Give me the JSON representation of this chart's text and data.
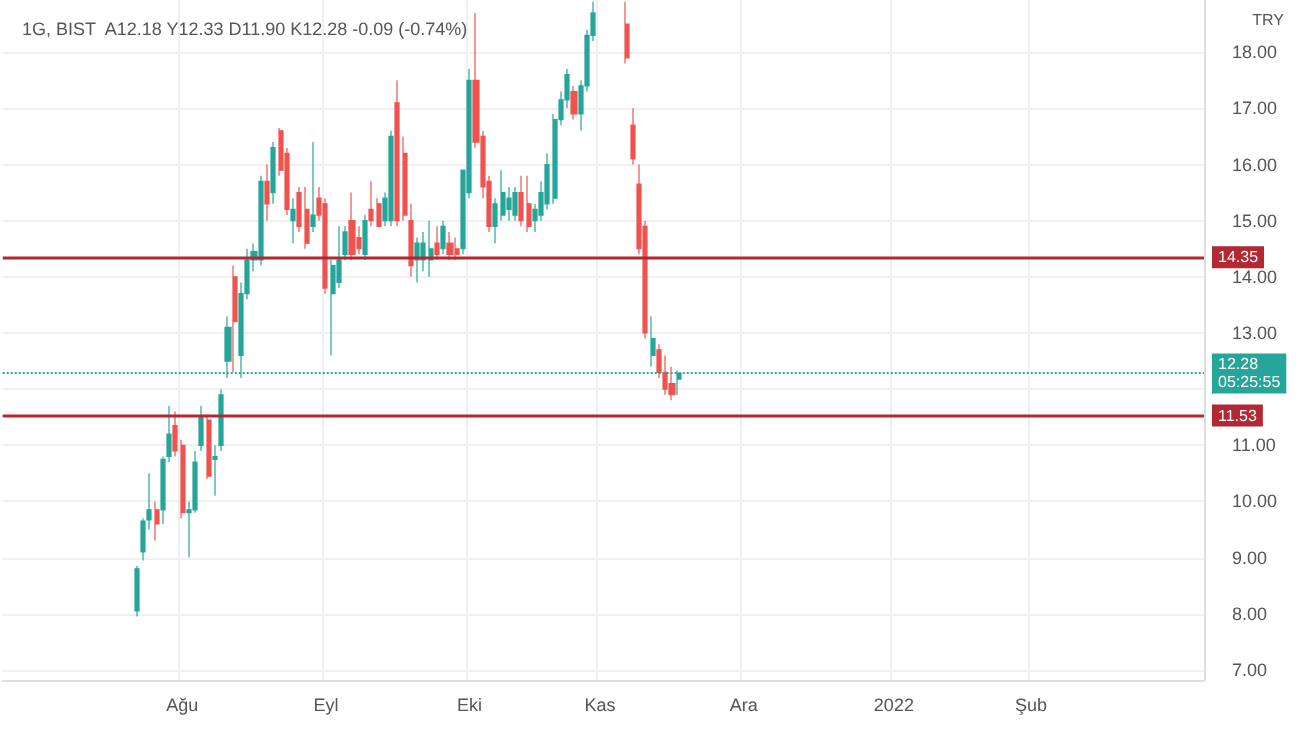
{
  "chart_data": {
    "type": "candlestick",
    "title": "1G, BIST  A12.18 Y12.33 D11.90 K12.28 -0.09 (-0.74%)",
    "categories": [
      null,
      null,
      null,
      null,
      null,
      null,
      null,
      null,
      null,
      null,
      null,
      null,
      null,
      null,
      null,
      null,
      null,
      null,
      null,
      null,
      null,
      null,
      null,
      null,
      null,
      null,
      null,
      "Ağu",
      null,
      null,
      null,
      null,
      null,
      null,
      null,
      null,
      null,
      null,
      null,
      null,
      null,
      null,
      null,
      null,
      null,
      null,
      null,
      null,
      null,
      "Eyl",
      null,
      null,
      null,
      null,
      null,
      null,
      null,
      null,
      null,
      null,
      null,
      null,
      null,
      null,
      null,
      null,
      null,
      null,
      null,
      null,
      null,
      "Eki",
      null,
      null,
      null,
      null,
      null,
      null,
      null,
      null,
      null,
      null,
      null,
      null,
      null,
      null,
      null,
      null,
      null,
      null,
      null,
      "Kas",
      null,
      null,
      null,
      null,
      null,
      null,
      null,
      null,
      null,
      null,
      null,
      null,
      null,
      null,
      null,
      null,
      null,
      null,
      null,
      null,
      null,
      "Ara",
      null,
      null,
      null,
      null,
      null,
      null,
      null,
      null,
      null,
      null,
      null,
      null,
      null,
      null,
      null,
      null,
      null,
      null,
      null,
      null,
      null,
      null,
      "2022",
      null,
      null,
      null,
      null,
      null,
      null,
      null,
      null,
      null,
      null,
      null,
      null,
      null,
      null,
      null,
      null,
      null,
      null,
      null,
      null,
      "Şub",
      null,
      null,
      null,
      null,
      null,
      null,
      null,
      null,
      null,
      null,
      null,
      null,
      null,
      null,
      null,
      null,
      null,
      null,
      null,
      null,
      null,
      null,
      null,
      null,
      null,
      null
    ],
    "ohlc": [
      null,
      null,
      null,
      null,
      null,
      null,
      null,
      null,
      null,
      null,
      null,
      null,
      null,
      null,
      null,
      null,
      null,
      null,
      null,
      null,
      [
        8.05,
        8.85,
        7.95,
        8.8
      ],
      [
        9.1,
        9.7,
        8.95,
        9.65
      ],
      [
        9.67,
        10.5,
        9.5,
        9.85
      ],
      [
        9.85,
        10.0,
        9.3,
        9.6
      ],
      [
        9.85,
        10.8,
        9.6,
        10.75
      ],
      [
        10.8,
        11.7,
        10.7,
        11.2
      ],
      [
        11.35,
        11.6,
        10.8,
        10.9
      ],
      [
        11.0,
        11.1,
        9.7,
        9.8
      ],
      [
        9.8,
        10.0,
        9.0,
        9.85
      ],
      [
        9.85,
        10.9,
        9.8,
        10.7
      ],
      [
        11.0,
        11.7,
        10.9,
        11.5
      ],
      [
        11.45,
        11.55,
        10.4,
        10.45
      ],
      [
        10.75,
        11.0,
        10.1,
        10.8
      ],
      [
        11.0,
        12.0,
        10.9,
        11.9
      ],
      [
        12.5,
        13.3,
        12.2,
        13.1
      ],
      [
        14.0,
        14.2,
        12.3,
        13.2
      ],
      [
        12.6,
        13.9,
        12.2,
        13.7
      ],
      [
        13.7,
        14.5,
        13.6,
        14.3
      ],
      [
        14.3,
        14.6,
        14.1,
        14.45
      ],
      [
        14.3,
        15.8,
        14.2,
        15.7
      ],
      [
        15.7,
        16.0,
        15.0,
        15.3
      ],
      [
        15.5,
        16.4,
        15.3,
        16.3
      ],
      [
        16.6,
        16.65,
        15.8,
        15.9
      ],
      [
        16.2,
        16.3,
        15.1,
        15.2
      ],
      [
        15.0,
        15.4,
        14.6,
        15.2
      ],
      [
        15.5,
        15.6,
        14.8,
        14.9
      ],
      [
        15.2,
        15.6,
        14.5,
        14.6
      ],
      [
        14.9,
        16.4,
        14.8,
        15.1
      ],
      [
        15.4,
        15.6,
        15.0,
        15.1
      ],
      [
        15.3,
        15.4,
        13.7,
        13.8
      ],
      [
        13.7,
        14.3,
        12.6,
        14.2
      ],
      [
        13.9,
        14.9,
        13.8,
        14.3
      ],
      [
        14.4,
        14.9,
        14.3,
        14.8
      ],
      [
        15.0,
        15.5,
        14.3,
        14.4
      ],
      [
        14.7,
        14.9,
        14.4,
        14.5
      ],
      [
        14.4,
        15.1,
        14.3,
        15.0
      ],
      [
        15.2,
        15.7,
        14.9,
        15.0
      ],
      [
        15.3,
        15.4,
        14.9,
        14.9
      ],
      [
        15.0,
        15.5,
        14.9,
        15.4
      ],
      [
        15.0,
        16.6,
        14.9,
        16.5
      ],
      [
        17.1,
        17.5,
        14.9,
        15.0
      ],
      [
        16.2,
        16.5,
        15.0,
        15.1
      ],
      [
        15.0,
        15.3,
        14.0,
        14.2
      ],
      [
        14.3,
        14.7,
        13.9,
        14.6
      ],
      [
        14.3,
        14.8,
        14.1,
        14.6
      ],
      [
        14.3,
        15.0,
        14.0,
        14.5
      ],
      [
        14.6,
        14.9,
        14.3,
        14.4
      ],
      [
        14.5,
        15.0,
        14.4,
        14.9
      ],
      [
        14.6,
        14.8,
        14.3,
        14.4
      ],
      [
        14.5,
        14.7,
        14.3,
        14.4
      ],
      [
        14.5,
        15.9,
        14.4,
        15.9
      ],
      [
        15.5,
        17.7,
        15.4,
        17.5
      ],
      [
        17.5,
        18.7,
        16.3,
        16.4
      ],
      [
        16.5,
        16.6,
        15.4,
        15.6
      ],
      [
        15.7,
        15.8,
        14.8,
        14.9
      ],
      [
        14.9,
        15.4,
        14.6,
        15.3
      ],
      [
        15.1,
        15.9,
        15.0,
        15.5
      ],
      [
        15.2,
        15.6,
        15.0,
        15.4
      ],
      [
        15.1,
        15.6,
        15.0,
        15.5
      ],
      [
        15.5,
        15.8,
        14.9,
        15.0
      ],
      [
        15.3,
        15.8,
        14.8,
        14.9
      ],
      [
        15.0,
        15.3,
        14.8,
        15.2
      ],
      [
        15.1,
        15.7,
        15.0,
        15.5
      ],
      [
        15.3,
        16.2,
        15.2,
        16.0
      ],
      [
        15.4,
        16.9,
        15.3,
        16.8
      ],
      [
        16.8,
        17.3,
        16.7,
        17.15
      ],
      [
        17.15,
        17.7,
        17.0,
        17.6
      ],
      [
        17.3,
        17.4,
        16.8,
        16.9
      ],
      [
        16.9,
        17.5,
        16.6,
        17.4
      ],
      [
        17.4,
        18.4,
        17.3,
        18.3
      ],
      [
        18.3,
        18.9,
        18.2,
        18.7
      ],
      null,
      null,
      null,
      null,
      [
        18.5,
        18.9,
        17.8,
        17.9
      ],
      [
        16.7,
        17.0,
        16.0,
        16.1
      ],
      [
        15.65,
        16.0,
        14.4,
        14.5
      ],
      [
        14.9,
        15.0,
        12.9,
        13.0
      ],
      [
        12.6,
        13.3,
        12.4,
        12.9
      ],
      [
        12.7,
        12.8,
        12.2,
        12.3
      ],
      [
        12.3,
        12.6,
        11.9,
        12.0
      ],
      [
        12.1,
        12.4,
        11.8,
        11.9
      ],
      [
        12.18,
        12.33,
        11.9,
        12.28
      ],
      null,
      null,
      null,
      null,
      null,
      null,
      null,
      null,
      null,
      null,
      null,
      null,
      null,
      null,
      null,
      null,
      null,
      null,
      null,
      null,
      null,
      null,
      null,
      null,
      null,
      null,
      null,
      null,
      null,
      null,
      null,
      null,
      null,
      null,
      null,
      null,
      null,
      null,
      null,
      null,
      null,
      null,
      null,
      null,
      null,
      null,
      null,
      null,
      null,
      null,
      null,
      null,
      null,
      null,
      null,
      null,
      null,
      null,
      null,
      null,
      null,
      null,
      null,
      null,
      null,
      null,
      null,
      null,
      null,
      null,
      null,
      null,
      null,
      null,
      null,
      null,
      null,
      null,
      null,
      null
    ],
    "ylim": [
      6.82,
      18.93
    ],
    "yticks": [
      {
        "value": 7,
        "label": "7.00"
      },
      {
        "value": 8,
        "label": "8.00"
      },
      {
        "value": 9,
        "label": "9.00"
      },
      {
        "value": 10,
        "label": "10.00"
      },
      {
        "value": 11,
        "label": "11.00"
      },
      {
        "value": 12,
        "label": null
      },
      {
        "value": 13,
        "label": "13.00"
      },
      {
        "value": 14,
        "label": "14.00"
      },
      {
        "value": 15,
        "label": "15.00"
      },
      {
        "value": 16,
        "label": "16.00"
      },
      {
        "value": 17,
        "label": "17.00"
      },
      {
        "value": 18,
        "label": "18.00"
      }
    ],
    "grid": true,
    "ref_lines": [
      {
        "axis": "y",
        "value": 14.35,
        "label": "14.35",
        "color": "#b22833",
        "line_style": "solid"
      },
      {
        "axis": "y",
        "value": 11.53,
        "label": "11.53",
        "color": "#b22833",
        "line_style": "solid"
      },
      {
        "axis": "y",
        "value": 12.28,
        "label": "12.28\n05:25:55",
        "color": "#26a69a",
        "line_style": "dotted"
      }
    ],
    "annotations": [
      "TRY"
    ]
  }
}
